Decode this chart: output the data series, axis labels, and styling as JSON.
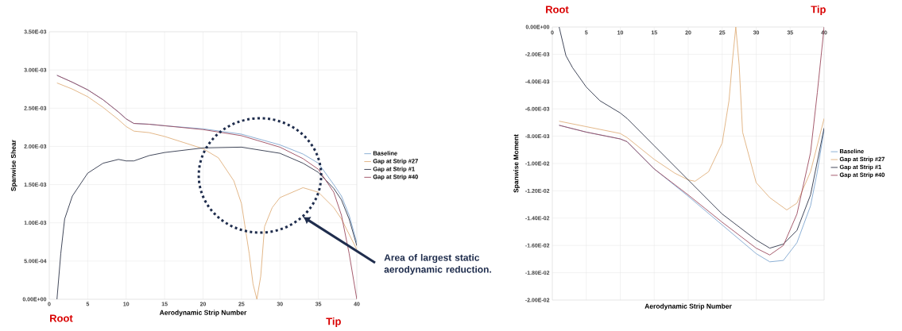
{
  "chart_data": [
    {
      "type": "line",
      "xlabel": "Aerodynamic Strip Number",
      "ylabel": "Spanwise Shear",
      "xlim": [
        0,
        40
      ],
      "xticks": [
        0,
        5,
        10,
        15,
        20,
        25,
        30,
        35,
        40
      ],
      "ylim": [
        0,
        0.0035
      ],
      "yticks": [
        {
          "value": 0,
          "label": "0.00E+00"
        },
        {
          "value": 0.0005,
          "label": "5.00E-04"
        },
        {
          "value": 0.001,
          "label": "1.00E-03"
        },
        {
          "value": 0.0015,
          "label": "1.50E-03"
        },
        {
          "value": 0.002,
          "label": "2.00E-03"
        },
        {
          "value": 0.0025,
          "label": "2.50E-03"
        },
        {
          "value": 0.003,
          "label": "3.00E-03"
        },
        {
          "value": 0.0035,
          "label": "3.50E-03"
        }
      ],
      "grid": true,
      "legend": "right",
      "series": [
        {
          "name": "Baseline",
          "color": "#7fa7d0",
          "x": [
            1,
            3,
            5,
            7,
            9,
            10,
            11,
            13,
            15,
            20,
            25,
            30,
            33,
            35,
            37,
            38,
            39,
            40
          ],
          "values": [
            0.00293,
            0.00284,
            0.00274,
            0.00261,
            0.00245,
            0.00236,
            0.0023,
            0.00229,
            0.00227,
            0.00223,
            0.00216,
            0.00202,
            0.0019,
            0.00178,
            0.0015,
            0.00135,
            0.0011,
            0.00074
          ]
        },
        {
          "name": "Gap at Strip #27",
          "color": "#e0b07c",
          "x": [
            1,
            3,
            5,
            7,
            9,
            10,
            11,
            13,
            15,
            20,
            22,
            24,
            25,
            26,
            26.5,
            27,
            27.5,
            28,
            29,
            30,
            33,
            35,
            37,
            38,
            40
          ],
          "values": [
            0.00283,
            0.00275,
            0.00265,
            0.00251,
            0.00235,
            0.00226,
            0.0022,
            0.00218,
            0.00213,
            0.00197,
            0.00185,
            0.00155,
            0.00125,
            0.0006,
            0.0002,
            0,
            0.0003,
            0.00095,
            0.0012,
            0.00133,
            0.00146,
            0.0014,
            0.0012,
            0.00105,
            0.00065
          ]
        },
        {
          "name": "Gap at Strip #1",
          "color": "#2e3549",
          "x": [
            1,
            1.5,
            2,
            3,
            5,
            7,
            9,
            10,
            11,
            13,
            15,
            20,
            25,
            30,
            33,
            35,
            37,
            38,
            39,
            40
          ],
          "values": [
            0,
            0.0006,
            0.00105,
            0.00135,
            0.00165,
            0.00178,
            0.00183,
            0.00181,
            0.00181,
            0.00188,
            0.00192,
            0.00198,
            0.00199,
            0.00191,
            0.00178,
            0.00166,
            0.00145,
            0.0013,
            0.00105,
            0.0007
          ]
        },
        {
          "name": "Gap at Strip #40",
          "color": "#9b4a5e",
          "x": [
            1,
            3,
            5,
            7,
            9,
            10,
            11,
            13,
            15,
            20,
            25,
            30,
            33,
            35,
            37,
            38,
            39,
            40
          ],
          "values": [
            0.00293,
            0.00284,
            0.00274,
            0.00261,
            0.00245,
            0.00236,
            0.0023,
            0.00229,
            0.00227,
            0.00222,
            0.00214,
            0.00199,
            0.00184,
            0.0017,
            0.0014,
            0.0011,
            0.0006,
            0
          ]
        }
      ],
      "annotations": [
        "Root",
        "Tip",
        "Area of largest static aerodynamic reduction."
      ]
    },
    {
      "type": "line",
      "xlabel": "Aerodynamic Strip Number",
      "ylabel": "Spanwise Moment",
      "xlim": [
        0,
        40
      ],
      "xticks": [
        0,
        5,
        10,
        15,
        20,
        25,
        30,
        35,
        40
      ],
      "ylim": [
        -0.02,
        0
      ],
      "yticks": [
        {
          "value": -0.02,
          "label": "-2.00E-02"
        },
        {
          "value": -0.018,
          "label": "-1.80E-02"
        },
        {
          "value": -0.016,
          "label": "-1.60E-02"
        },
        {
          "value": -0.014,
          "label": "-1.40E-02"
        },
        {
          "value": -0.012,
          "label": "-1.20E-02"
        },
        {
          "value": -0.01,
          "label": "-1.00E-02"
        },
        {
          "value": -0.008,
          "label": "-8.00E-03"
        },
        {
          "value": -0.006,
          "label": "-6.00E-03"
        },
        {
          "value": -0.004,
          "label": "-4.00E-03"
        },
        {
          "value": -0.002,
          "label": "-2.00E-03"
        },
        {
          "value": 0,
          "label": "0.00E+00"
        }
      ],
      "grid": true,
      "legend": "right",
      "series": [
        {
          "name": "Baseline",
          "color": "#7fa7d0",
          "x": [
            1,
            5,
            10,
            11,
            15,
            20,
            25,
            30,
            32,
            34,
            36,
            38,
            39,
            40
          ],
          "values": [
            -0.0072,
            -0.0077,
            -0.0082,
            -0.0084,
            -0.0104,
            -0.0124,
            -0.0145,
            -0.0166,
            -0.0172,
            -0.0171,
            -0.0158,
            -0.0131,
            -0.0106,
            -0.0075
          ]
        },
        {
          "name": "Gap at Strip #27",
          "color": "#e0b07c",
          "x": [
            1,
            5,
            10,
            11,
            15,
            18,
            20,
            21,
            23,
            25,
            26,
            26.5,
            27,
            27.5,
            28,
            30,
            32,
            34.5,
            36,
            38,
            40
          ],
          "values": [
            -0.0069,
            -0.0073,
            -0.0078,
            -0.0081,
            -0.0097,
            -0.0107,
            -0.0112,
            -0.0113,
            -0.0106,
            -0.0085,
            -0.0054,
            -0.0025,
            0,
            -0.0028,
            -0.0077,
            -0.0114,
            -0.0125,
            -0.0134,
            -0.0129,
            -0.0106,
            -0.0067
          ]
        },
        {
          "name": "Gap at Strip #1",
          "color": "#2e3549",
          "x": [
            1,
            2,
            3,
            5,
            7,
            9,
            10,
            11,
            15,
            20,
            25,
            30,
            32,
            34,
            36,
            38,
            40
          ],
          "values": [
            0,
            -0.0021,
            -0.003,
            -0.0044,
            -0.0054,
            -0.006,
            -0.0063,
            -0.0067,
            -0.0087,
            -0.0112,
            -0.0137,
            -0.0156,
            -0.0162,
            -0.0159,
            -0.0149,
            -0.0123,
            -0.0074
          ]
        },
        {
          "name": "Gap at Strip #40",
          "color": "#9b4a5e",
          "x": [
            1,
            5,
            10,
            11,
            15,
            20,
            25,
            30,
            32,
            34,
            36,
            38,
            39,
            40
          ],
          "values": [
            -0.0072,
            -0.0077,
            -0.0082,
            -0.0084,
            -0.0104,
            -0.0123,
            -0.0143,
            -0.0162,
            -0.0167,
            -0.016,
            -0.0137,
            -0.0092,
            -0.0048,
            0
          ]
        }
      ],
      "annotations": [
        "Root",
        "Tip"
      ]
    }
  ]
}
